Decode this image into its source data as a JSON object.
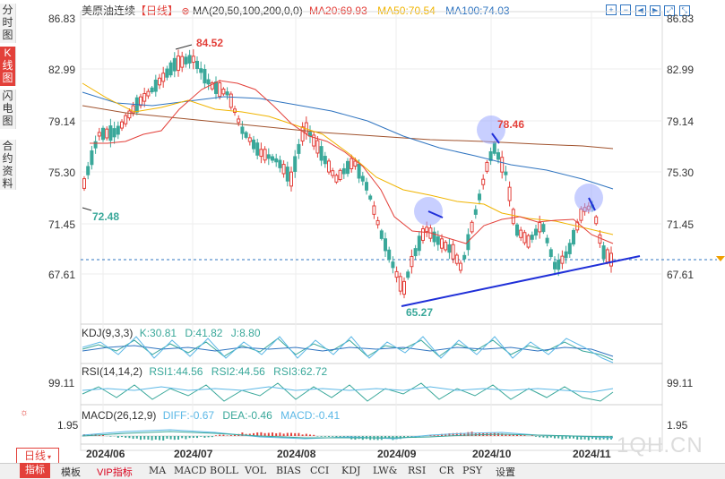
{
  "side_tabs": [
    "分时图",
    "K线图",
    "闪电图",
    "合约资料"
  ],
  "legend": {
    "title": "美原油连续",
    "period": "【日线】",
    "settings_icon": "gear-icon",
    "ma_label": "MA(20,50,100,200,0,0)",
    "ma20": "MA20:69.93",
    "ma50": "MA50:70.54",
    "ma100": "MA100:74.03",
    "colors": {
      "ma20": "#e3403a",
      "ma50": "#f0b400",
      "ma100": "#2f74c0",
      "ma200": "#a0522d"
    }
  },
  "toolbar_icons": [
    "expand-icon",
    "shrink-icon",
    "arrow-left-icon",
    "arrow-right-icon",
    "fullscreen-icon",
    "fullscreen-exit-icon"
  ],
  "price_axis": [
    "86.83",
    "82.99",
    "79.14",
    "75.30",
    "71.45",
    "67.61"
  ],
  "annotations": {
    "high": "84.52",
    "low_left": "72.48",
    "low": "65.27",
    "peak": "78.46"
  },
  "current_price_line": 68.6,
  "kdj": {
    "label": "KDJ(9,3,3)",
    "k": "K:30.81",
    "d": "D:41.82",
    "j": "J:8.80"
  },
  "rsi": {
    "label": "RSI(14,14,2)",
    "r1": "RSI1:44.56",
    "r2": "RSI2:44.56",
    "r3": "RSI3:62.72",
    "axis": "99.11"
  },
  "macd": {
    "label": "MACD(26,12,9)",
    "diff": "DIFF:-0.67",
    "dea": "DEA:-0.46",
    "macd": "MACD:-0.41",
    "axis": "1.95"
  },
  "x_axis": [
    "2024/06",
    "2024/07",
    "2024/08",
    "2024/09",
    "2024/10",
    "2024/11"
  ],
  "period_selector": "日线",
  "watermark": "1QH.CN",
  "bottom_tabs": [
    "指标",
    "模板",
    "VIP指标",
    "MA",
    "MACD",
    "BOLL",
    "VOL",
    "BIAS",
    "CCI",
    "KDJ",
    "LW&",
    "RSI",
    "CR",
    "PSY",
    "设置"
  ]
}
